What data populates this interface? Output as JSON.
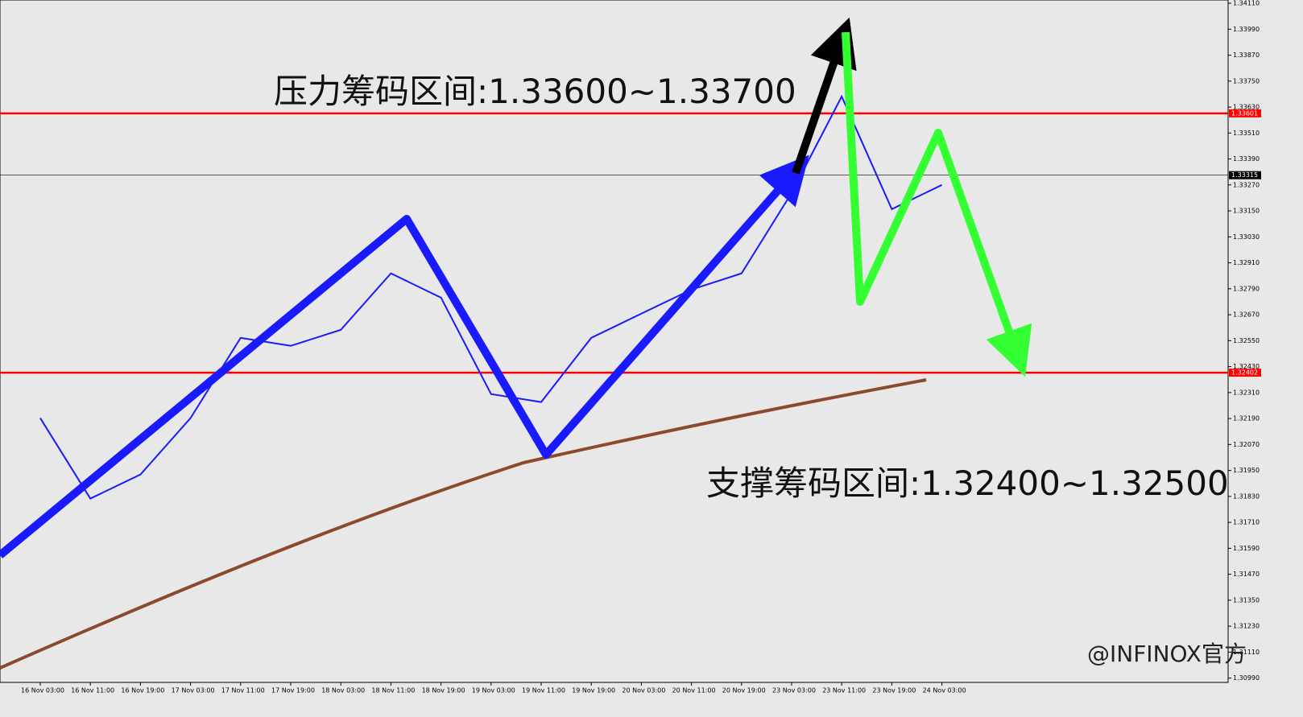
{
  "chart_data": {
    "type": "line",
    "x": [
      "16 Nov 03:00",
      "16 Nov 11:00",
      "16 Nov 19:00",
      "17 Nov 03:00",
      "17 Nov 11:00",
      "17 Nov 19:00",
      "18 Nov 03:00",
      "18 Nov 11:00",
      "18 Nov 19:00",
      "19 Nov 03:00",
      "19 Nov 11:00",
      "19 Nov 19:00",
      "20 Nov 03:00",
      "20 Nov 11:00",
      "20 Nov 19:00",
      "23 Nov 03:00",
      "23 Nov 11:00",
      "23 Nov 19:00",
      "24 Nov 03:00"
    ],
    "values": [
      1.32192,
      1.3182,
      1.31931,
      1.32192,
      1.32563,
      1.32526,
      1.326,
      1.32861,
      1.32749,
      1.32303,
      1.32266,
      1.32563,
      1.32675,
      1.32786,
      1.32861,
      1.33233,
      1.33679,
      1.33158,
      1.3327
    ],
    "color": "#1a1aff",
    "ylim": [
      1.3097,
      1.34125
    ],
    "yticks": [
      {
        "value": 1.3411,
        "label": "1.34110"
      },
      {
        "value": 1.3399,
        "label": "1.33990"
      },
      {
        "value": 1.3387,
        "label": "1.33870"
      },
      {
        "value": 1.3375,
        "label": "1.33750"
      },
      {
        "value": 1.3363,
        "label": "1.33630"
      },
      {
        "value": 1.3351,
        "label": "1.33510"
      },
      {
        "value": 1.3339,
        "label": "1.33390"
      },
      {
        "value": 1.3327,
        "label": "1.33270"
      },
      {
        "value": 1.3315,
        "label": "1.33150"
      },
      {
        "value": 1.3303,
        "label": "1.33030"
      },
      {
        "value": 1.3291,
        "label": "1.32910"
      },
      {
        "value": 1.3279,
        "label": "1.32790"
      },
      {
        "value": 1.3267,
        "label": "1.32670"
      },
      {
        "value": 1.3255,
        "label": "1.32550"
      },
      {
        "value": 1.3243,
        "label": "1.32430"
      },
      {
        "value": 1.3231,
        "label": "1.32310"
      },
      {
        "value": 1.3219,
        "label": "1.32190"
      },
      {
        "value": 1.3207,
        "label": "1.32070"
      },
      {
        "value": 1.3195,
        "label": "1.31950"
      },
      {
        "value": 1.3183,
        "label": "1.31830"
      },
      {
        "value": 1.3171,
        "label": "1.31710"
      },
      {
        "value": 1.3159,
        "label": "1.31590"
      },
      {
        "value": 1.3147,
        "label": "1.31470"
      },
      {
        "value": 1.3135,
        "label": "1.31350"
      },
      {
        "value": 1.3123,
        "label": "1.31230"
      },
      {
        "value": 1.3111,
        "label": "1.31110"
      },
      {
        "value": 1.3099,
        "label": "1.30990"
      }
    ],
    "hlines": [
      {
        "value": 1.33601,
        "label": "1.33601",
        "color": "#ff0000"
      },
      {
        "value": 1.32402,
        "label": "1.32402",
        "color": "#ff0000"
      },
      {
        "value": 1.33315,
        "label": "1.33315",
        "color": "#000000"
      }
    ],
    "annotations": [
      "压力筹码区间:1.33600~1.33700",
      "支撑筹码区间:1.32400~1.32500"
    ],
    "watermark": "@INFINOX官方"
  }
}
